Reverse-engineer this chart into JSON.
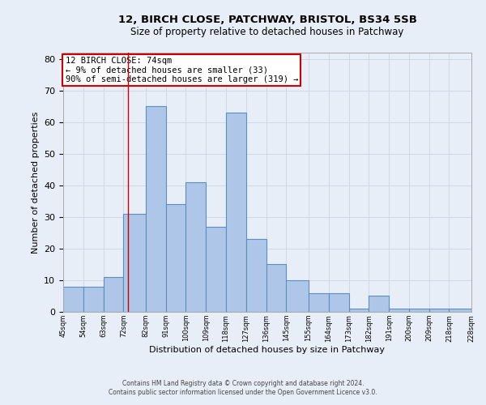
{
  "title1": "12, BIRCH CLOSE, PATCHWAY, BRISTOL, BS34 5SB",
  "title2": "Size of property relative to detached houses in Patchway",
  "xlabel": "Distribution of detached houses by size in Patchway",
  "ylabel": "Number of detached properties",
  "bins": [
    45,
    54,
    63,
    72,
    82,
    91,
    100,
    109,
    118,
    127,
    136,
    145,
    155,
    164,
    173,
    182,
    191,
    200,
    209,
    218,
    228
  ],
  "values": [
    8,
    8,
    11,
    31,
    65,
    34,
    41,
    27,
    63,
    23,
    15,
    10,
    6,
    6,
    1,
    5,
    1,
    1,
    1,
    1
  ],
  "bar_color": "#aec6e8",
  "bar_edge_color": "#5a8fc0",
  "bar_linewidth": 0.8,
  "vline_x": 74,
  "vline_color": "#cc0000",
  "annotation_line1": "12 BIRCH CLOSE: 74sqm",
  "annotation_line2": "← 9% of detached houses are smaller (33)",
  "annotation_line3": "90% of semi-detached houses are larger (319) →",
  "annotation_box_color": "#cc0000",
  "annotation_fontsize": 7.5,
  "ylim": [
    0,
    82
  ],
  "yticks": [
    0,
    10,
    20,
    30,
    40,
    50,
    60,
    70,
    80
  ],
  "tick_labels": [
    "45sqm",
    "54sqm",
    "63sqm",
    "72sqm",
    "82sqm",
    "91sqm",
    "100sqm",
    "109sqm",
    "118sqm",
    "127sqm",
    "136sqm",
    "145sqm",
    "155sqm",
    "164sqm",
    "173sqm",
    "182sqm",
    "191sqm",
    "200sqm",
    "209sqm",
    "218sqm",
    "228sqm"
  ],
  "grid_color": "#d0d8e8",
  "bg_color": "#e8eef8",
  "footer1": "Contains HM Land Registry data © Crown copyright and database right 2024.",
  "footer2": "Contains public sector information licensed under the Open Government Licence v3.0.",
  "title1_fontsize": 9.5,
  "title2_fontsize": 8.5,
  "xlabel_fontsize": 8,
  "ylabel_fontsize": 8
}
